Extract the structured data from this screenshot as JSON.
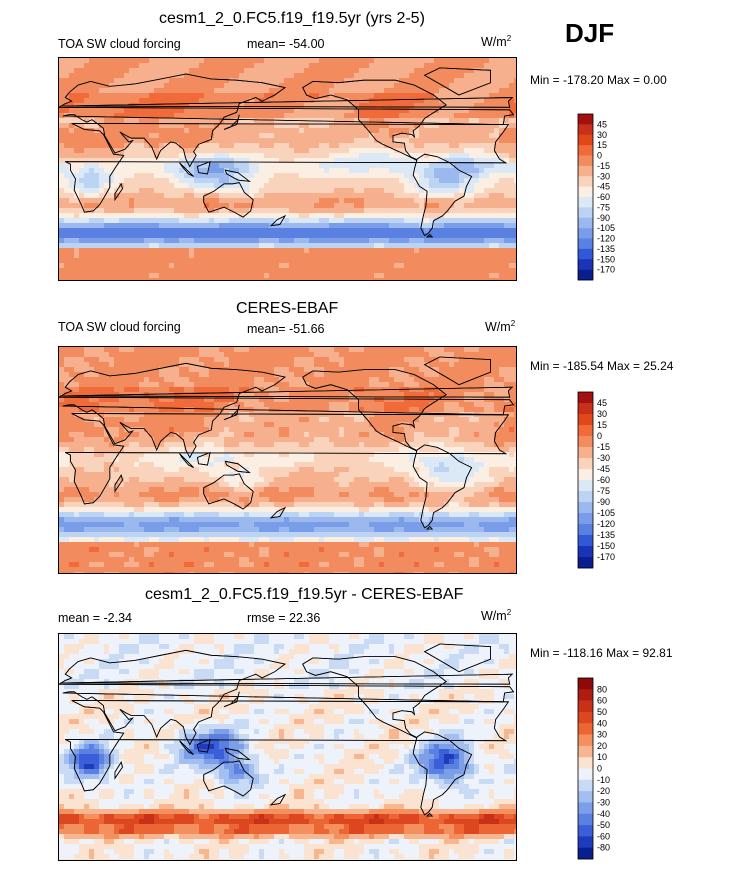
{
  "season": "DJF",
  "chart_data": [
    {
      "type": "heatmap",
      "title": "cesm1_2_0.FC5.f19_f19.5yr (yrs 2-5)",
      "variable": "TOA SW cloud forcing",
      "stat_label": "mean= -54.00",
      "units": "W/m",
      "units_sup": "2",
      "minmax_label": "Min = -178.20 Max =   0.00",
      "min": -178.2,
      "max": 0.0,
      "colorbar": {
        "levels": [
          "45",
          "30",
          "15",
          "0",
          "-15",
          "-30",
          "-45",
          "-60",
          "-75",
          "-90",
          "-105",
          "-120",
          "-135",
          "-150",
          "-170"
        ],
        "colors": [
          "#a31010",
          "#c9301a",
          "#e2471c",
          "#f06a3a",
          "#f28c5e",
          "#f6b08e",
          "#f9d3bc",
          "#fbeee3",
          "#dbe9f6",
          "#bcd3f3",
          "#9bb8ef",
          "#7a9de9",
          "#5a80e2",
          "#2f59d6",
          "#1a33b8",
          "#0b1e8f"
        ]
      },
      "field": "model"
    },
    {
      "type": "heatmap",
      "title": "CERES-EBAF",
      "variable": "TOA SW cloud forcing",
      "stat_label": "mean= -51.66",
      "units": "W/m",
      "units_sup": "2",
      "minmax_label": "Min = -185.54 Max =  25.24",
      "min": -185.54,
      "max": 25.24,
      "colorbar": {
        "levels": [
          "45",
          "30",
          "15",
          "0",
          "-15",
          "-30",
          "-45",
          "-60",
          "-75",
          "-90",
          "-105",
          "-120",
          "-135",
          "-150",
          "-170"
        ],
        "colors": [
          "#a31010",
          "#c9301a",
          "#e2471c",
          "#f06a3a",
          "#f28c5e",
          "#f6b08e",
          "#f9d3bc",
          "#fbeee3",
          "#dbe9f6",
          "#bcd3f3",
          "#9bb8ef",
          "#7a9de9",
          "#5a80e2",
          "#2f59d6",
          "#1a33b8",
          "#0b1e8f"
        ]
      },
      "field": "obs"
    },
    {
      "type": "heatmap",
      "title": "cesm1_2_0.FC5.f19_f19.5yr - CERES-EBAF",
      "stat_label": "mean =  -2.34",
      "rmse_label": "rmse =  22.36",
      "units": "W/m",
      "units_sup": "2",
      "minmax_label": "Min = -118.16 Max =  92.81",
      "min": -118.16,
      "max": 92.81,
      "colorbar": {
        "levels": [
          "80",
          "60",
          "50",
          "40",
          "30",
          "20",
          "10",
          "0",
          "-10",
          "-20",
          "-30",
          "-40",
          "-50",
          "-60",
          "-80"
        ],
        "colors": [
          "#8e0a0a",
          "#b01c12",
          "#c93018",
          "#dc4620",
          "#ec6635",
          "#f3905e",
          "#f7b590",
          "#fbe3d2",
          "#eef3fb",
          "#c9dbf4",
          "#a2bff0",
          "#7c9fe8",
          "#5a80e2",
          "#3a5fd8",
          "#1f3bbd",
          "#0b1e8f"
        ]
      },
      "field": "diff"
    }
  ]
}
